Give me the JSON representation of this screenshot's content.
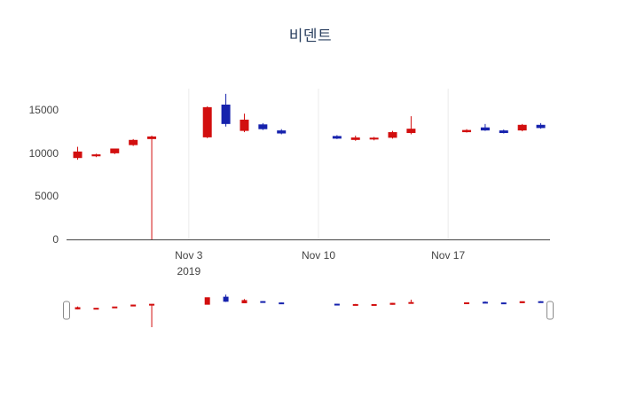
{
  "title": "비덴트",
  "colors": {
    "increasing": "#d20f0f",
    "decreasing": "#1622ad",
    "grid": "#ebebeb",
    "axis": "#444444",
    "slider_handle_fill": "#ffffff",
    "slider_handle_border": "#8a8a8a",
    "background": "#ffffff"
  },
  "y_axis": {
    "ticks": [
      {
        "label": "0",
        "value": 0
      },
      {
        "label": "5000",
        "value": 5000
      },
      {
        "label": "10000",
        "value": 10000
      },
      {
        "label": "15000",
        "value": 15000
      }
    ]
  },
  "x_axis": {
    "ticks": [
      {
        "label": "Nov 3",
        "sublabel": "2019",
        "date": "2019-11-03"
      },
      {
        "label": "Nov 10",
        "sublabel": "",
        "date": "2019-11-10"
      },
      {
        "label": "Nov 17",
        "sublabel": "",
        "date": "2019-11-17"
      }
    ]
  },
  "chart_data": {
    "type": "candlestick",
    "title": "비덴트",
    "xlabel": "",
    "ylabel": "",
    "ylim": [
      0,
      17500
    ],
    "x_start_date": "2019-10-27",
    "grid": "vertical-only",
    "rangeslider": true,
    "series": [
      {
        "date": "2019-10-28",
        "open": 9500,
        "high": 10750,
        "low": 9250,
        "close": 10150
      },
      {
        "date": "2019-10-29",
        "open": 9700,
        "high": 9950,
        "low": 9550,
        "close": 9820
      },
      {
        "date": "2019-10-30",
        "open": 10050,
        "high": 10550,
        "low": 9900,
        "close": 10500
      },
      {
        "date": "2019-10-31",
        "open": 11000,
        "high": 11650,
        "low": 10850,
        "close": 11500
      },
      {
        "date": "2019-11-01",
        "open": 11700,
        "high": 12050,
        "low": 0,
        "close": 11900
      },
      {
        "date": "2019-11-04",
        "open": 11900,
        "high": 15450,
        "low": 11750,
        "close": 15300
      },
      {
        "date": "2019-11-05",
        "open": 15600,
        "high": 16900,
        "low": 13100,
        "close": 13450
      },
      {
        "date": "2019-11-06",
        "open": 12650,
        "high": 14600,
        "low": 12450,
        "close": 13850
      },
      {
        "date": "2019-11-07",
        "open": 13300,
        "high": 13500,
        "low": 12700,
        "close": 12850
      },
      {
        "date": "2019-11-08",
        "open": 12600,
        "high": 12800,
        "low": 12200,
        "close": 12350
      },
      {
        "date": "2019-11-11",
        "open": 11950,
        "high": 12100,
        "low": 11650,
        "close": 11750
      },
      {
        "date": "2019-11-12",
        "open": 11600,
        "high": 12050,
        "low": 11450,
        "close": 11780
      },
      {
        "date": "2019-11-13",
        "open": 11650,
        "high": 11900,
        "low": 11500,
        "close": 11760
      },
      {
        "date": "2019-11-14",
        "open": 11850,
        "high": 12600,
        "low": 11700,
        "close": 12400
      },
      {
        "date": "2019-11-15",
        "open": 12400,
        "high": 14300,
        "low": 12200,
        "close": 12800
      },
      {
        "date": "2019-11-18",
        "open": 12500,
        "high": 12800,
        "low": 12400,
        "close": 12650
      },
      {
        "date": "2019-11-19",
        "open": 12950,
        "high": 13400,
        "low": 12600,
        "close": 12700
      },
      {
        "date": "2019-11-20",
        "open": 12600,
        "high": 12750,
        "low": 12300,
        "close": 12400
      },
      {
        "date": "2019-11-21",
        "open": 12700,
        "high": 13400,
        "low": 12550,
        "close": 13250
      },
      {
        "date": "2019-11-22",
        "open": 13250,
        "high": 13500,
        "low": 12850,
        "close": 12980
      }
    ]
  }
}
